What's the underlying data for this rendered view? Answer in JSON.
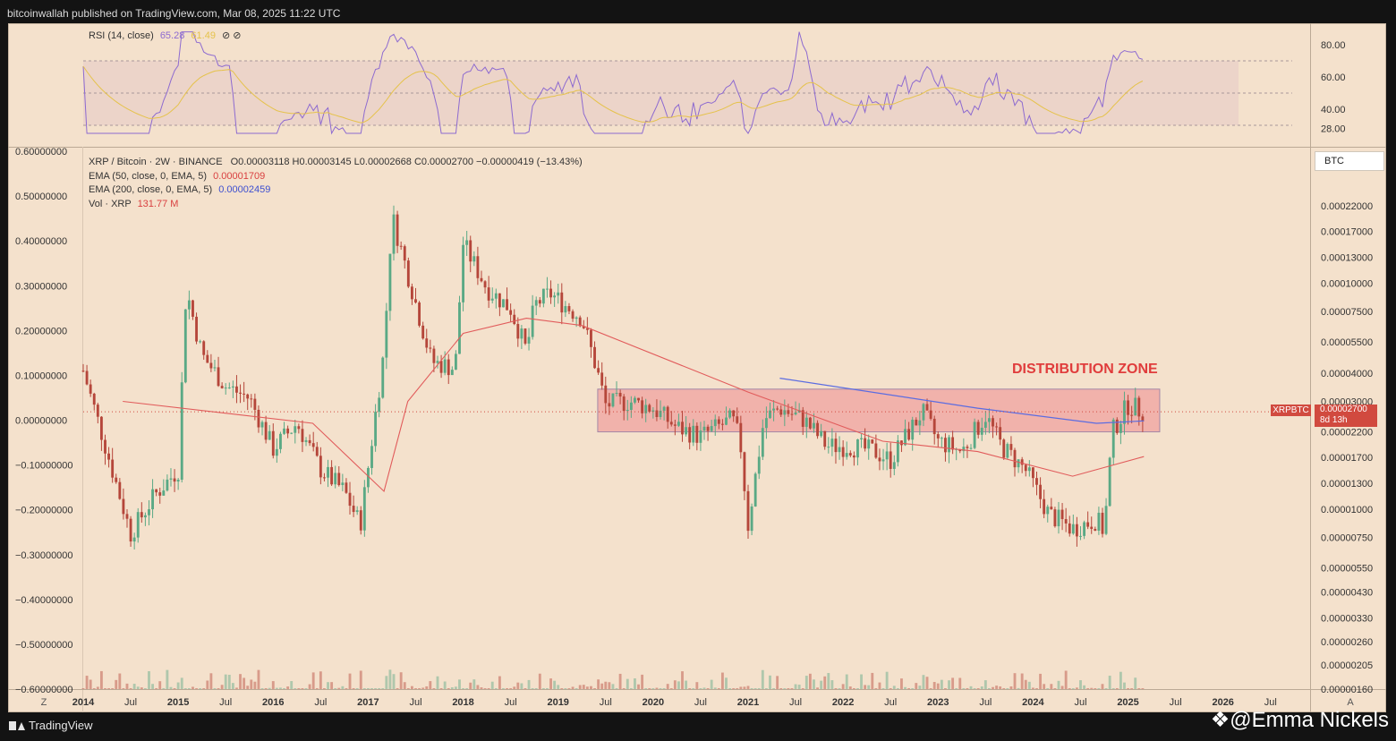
{
  "header": {
    "published": "bitcoinwallah published on TradingView.com, Mar 08, 2025 11:22 UTC"
  },
  "rsi_legend": {
    "name": "RSI (14, close)",
    "value1": "65.28",
    "value2": "61.49",
    "icons": "⊘  ⊘"
  },
  "main_legend": {
    "symbol": "XRP / Bitcoin · 2W · BINANCE",
    "ohlc": "O0.00003118  H0.00003145  L0.00002668  C0.00002700  −0.00000419 (−13.43%)",
    "ema50_label": "EMA (50, close, 0, EMA, 5)",
    "ema50_value": "0.00001709",
    "ema200_label": "EMA (200, close, 0, EMA, 5)",
    "ema200_value": "0.00002459",
    "vol_label": "Vol · XRP",
    "vol_value": "131.77 M"
  },
  "annotation": {
    "text": "DISTRIBUTION ZONE"
  },
  "currency_button": "BTC",
  "price_tag": {
    "symbol": "XRPBTC",
    "price": "0.00002700",
    "countdown": "8d 13h"
  },
  "rsi_axis_labels": [
    "80.00",
    "60.00",
    "40.00",
    "28.00"
  ],
  "left_axis_labels": [
    "0.60000000",
    "0.50000000",
    "0.40000000",
    "0.30000000",
    "0.20000000",
    "0.10000000",
    "0.00000000",
    "−0.10000000",
    "−0.20000000",
    "−0.30000000",
    "−0.40000000",
    "−0.50000000",
    "−0.60000000"
  ],
  "right_axis_labels": [
    "0.00022000",
    "0.00017000",
    "0.00013000",
    "0.00010000",
    "0.00007500",
    "0.00005500",
    "0.00004000",
    "0.00003000",
    "0.00002200",
    "0.00001700",
    "0.00001300",
    "0.00001000",
    "0.00000750",
    "0.00000550",
    "0.00000430",
    "0.00000330",
    "0.00000260",
    "0.00000205",
    "0.00000160"
  ],
  "time_axis_labels": [
    "2014",
    "Jul",
    "2015",
    "Jul",
    "2016",
    "Jul",
    "2017",
    "Jul",
    "2018",
    "Jul",
    "2019",
    "Jul",
    "2020",
    "Jul",
    "2021",
    "Jul",
    "2022",
    "Jul",
    "2023",
    "Jul",
    "2024",
    "Jul",
    "2025",
    "Jul",
    "2026",
    "Jul"
  ],
  "time_axis_ends": {
    "left": "Z",
    "right": "A"
  },
  "footer": {
    "brand": "TradingView",
    "watermark": "❖@Emma Nickels"
  },
  "colors": {
    "up": "#5aa985",
    "down": "#b5463a",
    "ema50": "#e15b5b",
    "ema200": "#5b6ce1",
    "rsi": "#8d6ad0",
    "rsi_ma": "#e5c24a",
    "zone": "#f0a3a0"
  },
  "chart_data": {
    "type": "candlestick",
    "title": "XRP / Bitcoin · 2W · BINANCE",
    "scale": "log",
    "x_range": [
      "2014-01",
      "2026-12"
    ],
    "y_range": [
      1.6e-06,
      0.0003
    ],
    "series_close": [
      [
        "2014-01",
        4.1e-05
      ],
      [
        "2014-04",
        1.8e-05
      ],
      [
        "2014-07",
        7.8e-06
      ],
      [
        "2014-10",
        1.15e-05
      ],
      [
        "2015-01",
        1.5e-05
      ],
      [
        "2015-02",
        9.5e-05
      ],
      [
        "2015-04",
        4.8e-05
      ],
      [
        "2015-07",
        3.5e-05
      ],
      [
        "2015-10",
        3.1e-05
      ],
      [
        "2016-01",
        1.85e-05
      ],
      [
        "2016-04",
        2.4e-05
      ],
      [
        "2016-07",
        1.5e-05
      ],
      [
        "2016-10",
        1.2e-05
      ],
      [
        "2016-12",
        8.5e-06
      ],
      [
        "2017-03",
        5e-05
      ],
      [
        "2017-04",
        0.0002
      ],
      [
        "2017-06",
        0.00011
      ],
      [
        "2017-09",
        4.5e-05
      ],
      [
        "2017-12",
        4.2e-05
      ],
      [
        "2018-01",
        0.00015
      ],
      [
        "2018-04",
        9.5e-05
      ],
      [
        "2018-07",
        7.7e-05
      ],
      [
        "2018-09",
        5e-05
      ],
      [
        "2018-10",
        8e-05
      ],
      [
        "2018-12",
        9e-05
      ],
      [
        "2019-04",
        7e-05
      ],
      [
        "2019-06",
        4e-05
      ],
      [
        "2019-07",
        2.9e-05
      ],
      [
        "2019-10",
        3e-05
      ],
      [
        "2020-01",
        2.8e-05
      ],
      [
        "2020-04",
        2.3e-05
      ],
      [
        "2020-07",
        2.1e-05
      ],
      [
        "2020-11",
        2.5e-05
      ],
      [
        "2020-12",
        2e-05
      ],
      [
        "2021-01",
        8.5e-06
      ],
      [
        "2021-03",
        2.5e-05
      ],
      [
        "2021-05",
        2.8e-05
      ],
      [
        "2021-08",
        2.5e-05
      ],
      [
        "2021-11",
        1.9e-05
      ],
      [
        "2022-02",
        1.9e-05
      ],
      [
        "2022-05",
        1.8e-05
      ],
      [
        "2022-07",
        1.65e-05
      ],
      [
        "2022-11",
        2.7e-05
      ],
      [
        "2023-01",
        2e-05
      ],
      [
        "2023-04",
        1.8e-05
      ],
      [
        "2023-07",
        2.6e-05
      ],
      [
        "2023-09",
        1.9e-05
      ],
      [
        "2023-12",
        1.5e-05
      ],
      [
        "2024-03",
        9.5e-06
      ],
      [
        "2024-06",
        8.2e-06
      ],
      [
        "2024-09",
        9e-06
      ],
      [
        "2024-10",
        8e-06
      ],
      [
        "2024-11",
        2.2e-05
      ],
      [
        "2025-01",
        2.9e-05
      ],
      [
        "2025-03",
        2.7e-05
      ]
    ],
    "ema50": [
      [
        "2014-06",
        3e-05
      ],
      [
        "2016-06",
        2.4e-05
      ],
      [
        "2017-03",
        1.2e-05
      ],
      [
        "2017-06",
        3e-05
      ],
      [
        "2018-01",
        6e-05
      ],
      [
        "2018-09",
        7e-05
      ],
      [
        "2019-04",
        6.5e-05
      ],
      [
        "2021-01",
        3.3e-05
      ],
      [
        "2022-06",
        2e-05
      ],
      [
        "2023-06",
        1.8e-05
      ],
      [
        "2024-06",
        1.4e-05
      ],
      [
        "2025-03",
        1.71e-05
      ]
    ],
    "ema200": [
      [
        "2021-05",
        3.8e-05
      ],
      [
        "2023-06",
        2.8e-05
      ],
      [
        "2024-09",
        2.4e-05
      ],
      [
        "2025-03",
        2.46e-05
      ]
    ],
    "distribution_zone": {
      "from": "2019-06",
      "to": "2025-05",
      "low": 2.2e-05,
      "high": 3.4e-05
    },
    "rsi_range": [
      20,
      90
    ]
  }
}
